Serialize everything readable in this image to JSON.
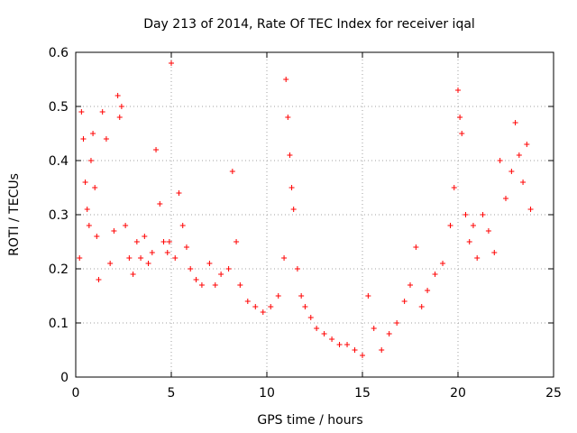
{
  "chart_data": {
    "type": "scatter",
    "title": "Day 213 of 2014, Rate Of TEC Index for receiver iqal",
    "xlabel": "GPS time / hours",
    "ylabel": "ROTI / TECUs",
    "xlim": [
      0,
      25
    ],
    "ylim": [
      0,
      0.6
    ],
    "xticks": [
      0,
      5,
      10,
      15,
      20,
      25
    ],
    "xtick_labels": [
      "0",
      "5",
      "10",
      "15",
      "20",
      "25"
    ],
    "yticks": [
      0,
      0.1,
      0.2,
      0.3,
      0.4,
      0.5,
      0.6
    ],
    "ytick_labels": [
      "0",
      "0.1",
      "0.2",
      "0.3",
      "0.4",
      "0.5",
      "0.6"
    ],
    "grid": true,
    "marker": "+",
    "color": "#ff0000",
    "series": [
      {
        "x": [
          0.2,
          0.3,
          0.4,
          0.5,
          0.6,
          0.7,
          0.8,
          0.9,
          1.0,
          1.1,
          1.2,
          1.4,
          1.6,
          1.8,
          2.0,
          2.2,
          2.3,
          2.4,
          2.6,
          2.8,
          3.0,
          3.2,
          3.4,
          3.6,
          3.8,
          4.0,
          4.2,
          4.4,
          4.6,
          4.8,
          4.9,
          5.0,
          5.2,
          5.4,
          5.6,
          5.8,
          6.0,
          6.3,
          6.6,
          7.0,
          7.3,
          7.6,
          8.0,
          8.2,
          8.4,
          8.6,
          9.0,
          9.4,
          9.8,
          10.2,
          10.6,
          10.9,
          11.0,
          11.1,
          11.2,
          11.3,
          11.4,
          11.6,
          11.8,
          12.0,
          12.3,
          12.6,
          13.0,
          13.4,
          13.8,
          14.2,
          14.6,
          15.0,
          15.3,
          15.6,
          16.0,
          16.4,
          16.8,
          17.2,
          17.5,
          17.8,
          18.1,
          18.4,
          18.8,
          19.2,
          19.6,
          19.8,
          20.0,
          20.1,
          20.2,
          20.4,
          20.6,
          20.8,
          21.0,
          21.3,
          21.6,
          21.9,
          22.2,
          22.5,
          22.8,
          23.0,
          23.2,
          23.4,
          23.6,
          23.8
        ],
        "y": [
          0.22,
          0.49,
          0.44,
          0.36,
          0.31,
          0.28,
          0.4,
          0.45,
          0.35,
          0.26,
          0.18,
          0.49,
          0.44,
          0.21,
          0.27,
          0.52,
          0.48,
          0.5,
          0.28,
          0.22,
          0.19,
          0.25,
          0.22,
          0.26,
          0.21,
          0.23,
          0.42,
          0.32,
          0.25,
          0.23,
          0.25,
          0.58,
          0.22,
          0.34,
          0.28,
          0.24,
          0.2,
          0.18,
          0.17,
          0.21,
          0.17,
          0.19,
          0.2,
          0.38,
          0.25,
          0.17,
          0.14,
          0.13,
          0.12,
          0.13,
          0.15,
          0.22,
          0.55,
          0.48,
          0.41,
          0.35,
          0.31,
          0.2,
          0.15,
          0.13,
          0.11,
          0.09,
          0.08,
          0.07,
          0.06,
          0.06,
          0.05,
          0.04,
          0.15,
          0.09,
          0.05,
          0.08,
          0.1,
          0.14,
          0.17,
          0.24,
          0.13,
          0.16,
          0.19,
          0.21,
          0.28,
          0.35,
          0.53,
          0.48,
          0.45,
          0.3,
          0.25,
          0.28,
          0.22,
          0.3,
          0.27,
          0.23,
          0.4,
          0.33,
          0.38,
          0.47,
          0.41,
          0.36,
          0.43,
          0.31
        ]
      }
    ]
  }
}
